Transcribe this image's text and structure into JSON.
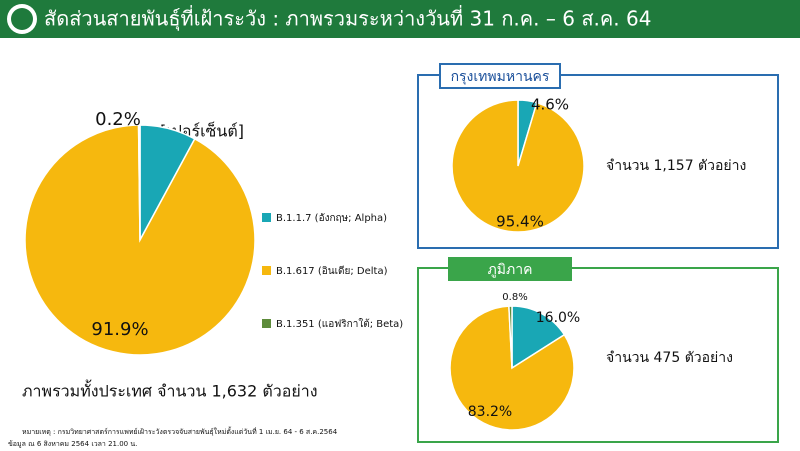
{
  "header": {
    "title": "สัดส่วนสายพันธุ์ที่เฝ้าระวัง : ภาพรวมระหว่างวันที่ 31 ก.ค. – 6 ส.ค. 64"
  },
  "chart_data": [
    {
      "type": "pie",
      "subtitle": "ภาพรวมทั้งประเทศ จำนวน 1,632 ตัวอย่าง",
      "annotation": "[เปอร์เซ็นต์]",
      "categories": [
        "B.1.1.7 (อังกฤษ; Alpha)",
        "B.1.617 (อินเดีย; Delta)",
        "B.1.351 (แอฟริกาใต้; Beta)"
      ],
      "values": [
        7.9,
        91.9,
        0.2
      ],
      "value_labels": [
        null,
        "91.9%",
        "0.2%"
      ],
      "colors": [
        "#19a7b5",
        "#f6b80e",
        "#5d8b3a"
      ]
    },
    {
      "type": "pie",
      "title": "กรุงเทพมหานคร",
      "subtitle": "จำนวน 1,157 ตัวอย่าง",
      "values": [
        4.6,
        95.4
      ],
      "value_labels": [
        "4.6%",
        "95.4%"
      ],
      "colors": [
        "#19a7b5",
        "#f6b80e"
      ]
    },
    {
      "type": "pie",
      "title": "ภูมิภาค",
      "subtitle": "จำนวน 475 ตัวอย่าง",
      "values": [
        16.0,
        83.2,
        0.8
      ],
      "value_labels": [
        "16.0%",
        "83.2%",
        "0.8%"
      ],
      "colors": [
        "#19a7b5",
        "#f6b80e",
        "#5d8b3a"
      ]
    }
  ],
  "footnotes": [
    "หมายเหตุ : กรมวิทยาศาสตร์การแพทย์เฝ้าระวังตรวจจับสายพันธุ์ใหม่ตั้งแต่วันที่ 1 เม.ย. 64 - 6 ส.ค.2564",
    "ข้อมูล ณ 6 สิงหาคม 2564 เวลา 21.00 น."
  ]
}
